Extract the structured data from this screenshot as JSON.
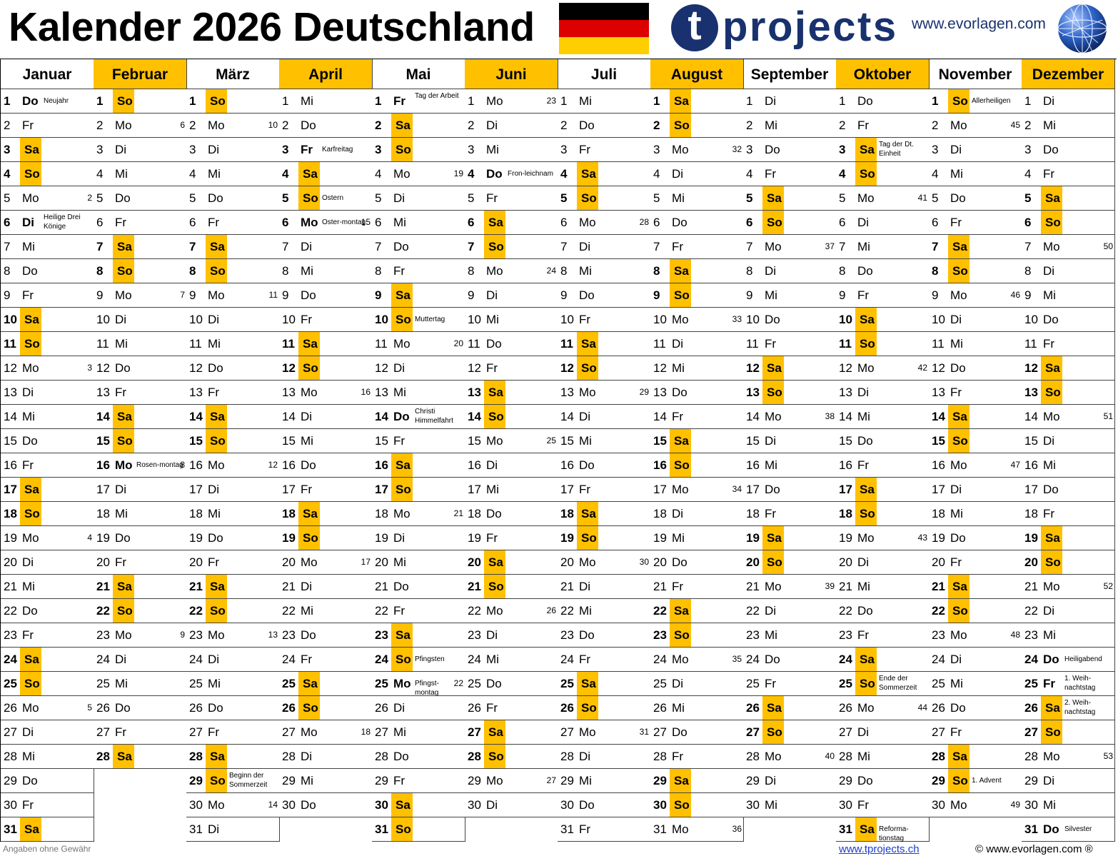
{
  "header": {
    "title": "Kalender 2026 Deutschland",
    "flag_colors": [
      "#000000",
      "#dd0000",
      "#ffce00"
    ],
    "logo_letter": "t",
    "logo_word": "projects",
    "website": "www.evorlagen.com",
    "globe_icon": "globe-icon"
  },
  "colors": {
    "weekend": "#ffc000",
    "brand": "#19316e"
  },
  "months": [
    {
      "name": "Januar",
      "start_weekday": 3,
      "days": 31,
      "highlight": false,
      "holidays": {
        "1": "Neujahr",
        "6": "Heilige Drei Könige"
      },
      "weeks": {
        "5": "2",
        "12": "3",
        "19": "4",
        "26": "5"
      }
    },
    {
      "name": "Februar",
      "start_weekday": 6,
      "days": 28,
      "highlight": true,
      "holidays": {
        "16": "Rosen-montag"
      },
      "weeks": {
        "2": "6",
        "9": "7",
        "16": "8",
        "23": "9"
      }
    },
    {
      "name": "März",
      "start_weekday": 6,
      "days": 31,
      "highlight": false,
      "holidays": {
        "29": "Beginn der Sommerzeit"
      },
      "weeks": {
        "2": "10",
        "9": "11",
        "16": "12",
        "23": "13",
        "30": "14"
      }
    },
    {
      "name": "April",
      "start_weekday": 2,
      "days": 30,
      "highlight": true,
      "holidays": {
        "3": "Karfreitag",
        "5": "Ostern",
        "6": "Oster-montag"
      },
      "weeks": {
        "6": "15",
        "13": "16",
        "20": "17",
        "27": "18"
      }
    },
    {
      "name": "Mai",
      "start_weekday": 4,
      "days": 31,
      "highlight": false,
      "holidays": {
        "1": "Tag der Arbeit",
        "10": "Muttertag",
        "14": "Christi Himmelfahrt",
        "24": "Pfingsten",
        "25": "Pfingst-montag"
      },
      "weeks": {
        "4": "19",
        "11": "20",
        "18": "21",
        "25": "22"
      }
    },
    {
      "name": "Juni",
      "start_weekday": 0,
      "days": 30,
      "highlight": true,
      "holidays": {
        "4": "Fron-leichnam"
      },
      "weeks": {
        "1": "23",
        "8": "24",
        "15": "25",
        "22": "26",
        "29": "27"
      }
    },
    {
      "name": "Juli",
      "start_weekday": 2,
      "days": 31,
      "highlight": false,
      "holidays": {},
      "weeks": {
        "6": "28",
        "13": "29",
        "20": "30",
        "27": "31"
      }
    },
    {
      "name": "August",
      "start_weekday": 5,
      "days": 31,
      "highlight": true,
      "holidays": {},
      "weeks": {
        "3": "32",
        "10": "33",
        "17": "34",
        "24": "35",
        "31": "36"
      }
    },
    {
      "name": "September",
      "start_weekday": 1,
      "days": 30,
      "highlight": false,
      "holidays": {},
      "weeks": {
        "7": "37",
        "14": "38",
        "21": "39",
        "28": "40"
      }
    },
    {
      "name": "Oktober",
      "start_weekday": 3,
      "days": 31,
      "highlight": true,
      "holidays": {
        "3": "Tag der Dt. Einheit",
        "25": "Ende der Sommerzeit",
        "31": "Reforma-tionstag"
      },
      "weeks": {
        "5": "41",
        "12": "42",
        "19": "43",
        "26": "44"
      }
    },
    {
      "name": "November",
      "start_weekday": 6,
      "days": 30,
      "highlight": false,
      "holidays": {
        "1": "Allerheiligen",
        "29": "1. Advent"
      },
      "weeks": {
        "2": "45",
        "9": "46",
        "16": "47",
        "23": "48",
        "30": "49"
      }
    },
    {
      "name": "Dezember",
      "start_weekday": 1,
      "days": 31,
      "highlight": true,
      "holidays": {
        "24": "Heiligabend",
        "25": "1. Weih-nachtstag",
        "26": "2. Weih-nachtstag",
        "31": "Silvester"
      },
      "weeks": {
        "7": "50",
        "14": "51",
        "21": "52",
        "28": "53"
      }
    }
  ],
  "weekday_names": [
    "Mo",
    "Di",
    "Mi",
    "Do",
    "Fr",
    "Sa",
    "So"
  ],
  "footer": {
    "disclaimer": "Angaben ohne Gewähr",
    "link": "www.tprojects.ch",
    "copyright": "© www.evorlagen.com ®"
  }
}
